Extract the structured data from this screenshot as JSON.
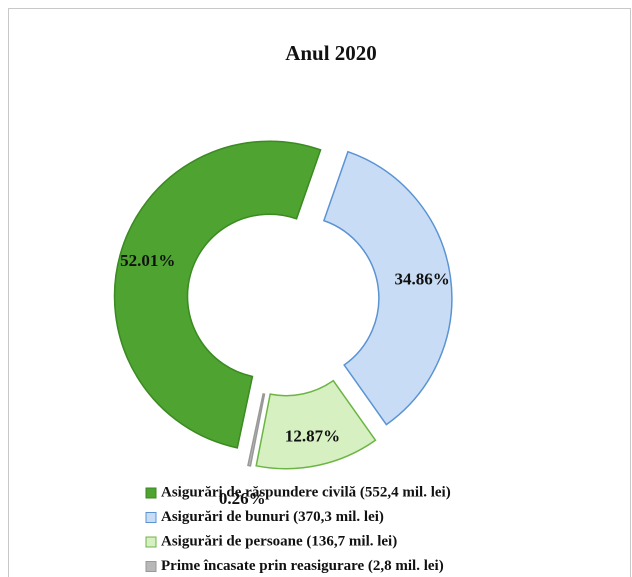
{
  "chart_data": {
    "type": "donut",
    "title": "Anul 2020",
    "categories": [
      "Asigurări de răspundere civilă (552,4 mil. lei)",
      "Asigurări de bunuri (370,3 mil. lei)",
      "Asigurări de persoane (136,7 mil. lei)",
      "Prime încasate prin reasigurare (2,8 mil. lei)"
    ],
    "values": [
      52.01,
      34.86,
      12.87,
      0.26
    ],
    "value_labels": [
      "52.01%",
      "34.86%",
      "12.87%",
      "0.26%"
    ],
    "colors": [
      "#4ea331",
      "#c8ddf5",
      "#d6f0c2",
      "#b8b8b8"
    ],
    "legend": "bottom"
  }
}
